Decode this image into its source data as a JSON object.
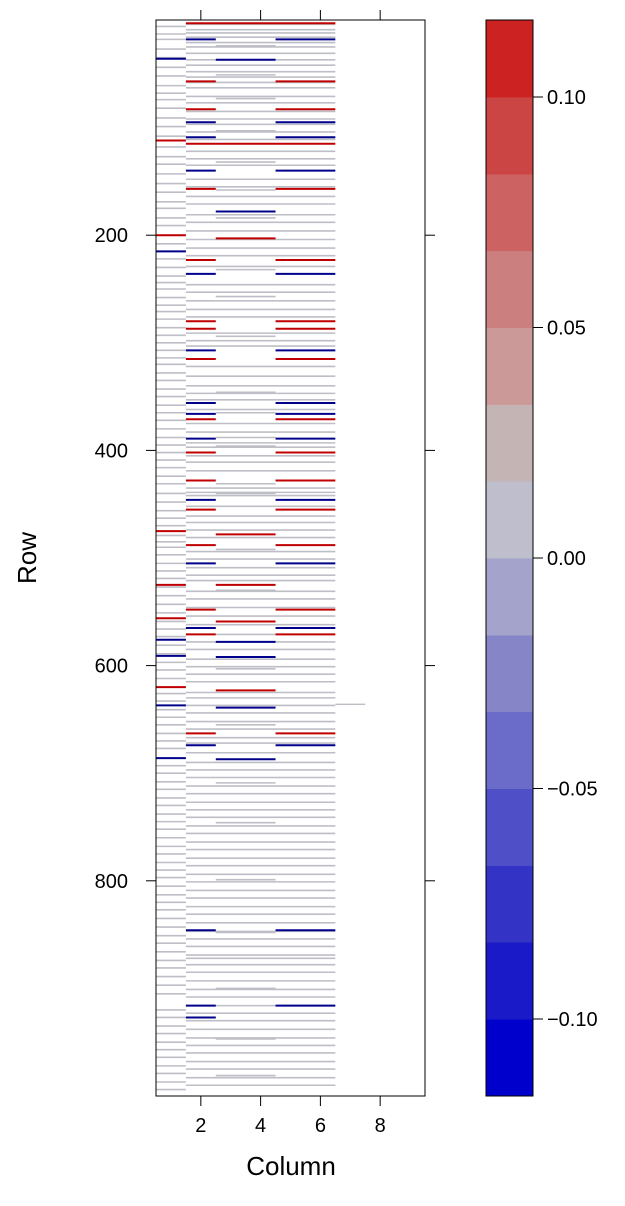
{
  "chart_data": {
    "type": "heatmap",
    "title": "",
    "xlabel": "Column",
    "ylabel": "Row",
    "xlim": [
      0.5,
      9.5
    ],
    "ylim": [
      1000,
      0
    ],
    "x_ticks": [
      2,
      4,
      6,
      8
    ],
    "x_tick_labels": [
      "2",
      "4",
      "6",
      "8"
    ],
    "y_ticks": [
      200,
      400,
      600,
      800
    ],
    "y_tick_labels": [
      "200",
      "400",
      "600",
      "800"
    ],
    "legend": {
      "placement": "right",
      "breaks": [
        -0.1167,
        -0.1,
        -0.0833,
        -0.0667,
        -0.05,
        -0.0333,
        -0.0167,
        0.0,
        0.0167,
        0.0333,
        0.05,
        0.0667,
        0.0833,
        0.1,
        0.1167
      ],
      "colors": [
        "#0000CC",
        "#1A1AC8",
        "#3333C6",
        "#4F4FC8",
        "#6B6BC9",
        "#8585C8",
        "#A3A3CC",
        "#BEBECC",
        "#C4B4B4",
        "#CC9999",
        "#CC7F7F",
        "#CC6262",
        "#CC4545",
        "#CC2222",
        "#CC0000"
      ],
      "tick_values": [
        -0.1,
        -0.05,
        0.0,
        0.05,
        0.1
      ],
      "tick_labels": [
        "−0.10",
        "−0.05",
        "0.00",
        "0.05",
        "0.10"
      ]
    },
    "color_key": {
      "gray": "#BEBEC6",
      "red": "#C00000",
      "blue": "#00008B"
    },
    "gray_rows_col1": [
      6,
      13,
      18,
      27,
      35,
      44,
      52,
      61,
      68,
      74,
      82,
      91,
      99,
      108,
      118,
      127,
      134,
      143,
      152,
      160,
      169,
      175,
      184,
      191,
      200,
      208,
      215,
      222,
      230,
      238,
      244,
      250,
      258,
      265,
      271,
      278,
      286,
      293,
      300,
      307,
      314,
      320,
      328,
      335,
      343,
      350,
      358,
      365,
      372,
      380,
      388,
      395,
      402,
      409,
      416,
      424,
      431,
      440,
      448,
      456,
      463,
      470,
      479,
      485,
      490,
      497,
      505,
      512,
      519,
      527,
      535,
      543,
      551,
      559,
      566,
      573,
      581,
      589,
      597,
      604,
      612,
      626,
      633,
      641,
      648,
      655,
      663,
      670,
      677,
      693,
      700,
      708,
      715,
      723,
      730,
      738,
      745,
      752,
      760,
      768,
      775,
      783,
      790,
      797,
      805,
      813,
      820,
      827,
      835,
      843,
      851,
      858,
      866,
      874,
      881,
      889,
      897,
      905,
      920,
      927,
      935,
      942,
      950,
      957,
      964,
      972,
      979,
      987,
      994
    ],
    "gray_rows_wide": [
      4,
      9,
      12,
      16,
      21,
      25,
      31,
      37,
      42,
      48,
      53,
      58,
      63,
      71,
      77,
      85,
      92,
      97,
      104,
      111,
      122,
      129,
      135,
      148,
      155,
      164,
      171,
      181,
      188,
      196,
      204,
      212,
      219,
      229,
      246,
      253,
      261,
      269,
      276,
      291,
      298,
      303,
      322,
      331,
      340,
      347,
      353,
      362,
      375,
      383,
      393,
      397,
      405,
      411,
      419,
      435,
      439,
      442,
      452,
      461,
      467,
      474,
      481,
      494,
      501,
      509,
      516,
      521,
      531,
      538,
      546,
      554,
      562,
      578,
      585,
      594,
      601,
      608,
      615,
      625,
      630,
      637,
      644,
      652,
      659,
      667,
      672,
      681,
      690,
      697,
      704,
      712,
      719,
      727,
      734,
      741,
      749,
      756,
      764,
      771,
      779,
      786,
      794,
      801,
      809,
      816,
      824,
      831,
      839,
      847,
      854,
      861,
      869,
      872,
      878,
      885,
      893,
      901,
      908,
      916,
      923,
      930,
      938,
      946,
      953,
      960,
      968,
      975,
      983,
      990
    ],
    "gray_rows_col3": [
      3,
      24,
      51,
      73,
      103,
      132,
      158,
      184,
      232,
      257,
      294,
      346,
      365,
      388,
      396,
      431,
      440,
      492,
      530,
      571,
      603,
      655,
      709,
      746,
      799,
      848,
      900,
      947,
      981
    ],
    "gray_row_col7": 636,
    "red_cells": [
      {
        "row": 3,
        "cols": [
          2,
          3,
          4,
          5,
          6
        ]
      },
      {
        "row": 57,
        "cols": [
          2,
          5,
          6
        ]
      },
      {
        "row": 83,
        "cols": [
          2,
          5,
          6
        ]
      },
      {
        "row": 112,
        "cols": [
          1
        ]
      },
      {
        "row": 115,
        "cols": [
          2,
          3,
          4,
          5,
          6
        ]
      },
      {
        "row": 157,
        "cols": [
          2,
          5,
          6
        ]
      },
      {
        "row": 200,
        "cols": [
          1
        ]
      },
      {
        "row": 203,
        "cols": [
          3,
          4
        ]
      },
      {
        "row": 223,
        "cols": [
          2,
          5,
          6
        ]
      },
      {
        "row": 280,
        "cols": [
          2,
          5,
          6
        ]
      },
      {
        "row": 287,
        "cols": [
          2,
          5,
          6
        ]
      },
      {
        "row": 315,
        "cols": [
          2,
          5,
          6
        ]
      },
      {
        "row": 371,
        "cols": [
          2,
          5,
          6
        ]
      },
      {
        "row": 402,
        "cols": [
          2,
          5,
          6
        ]
      },
      {
        "row": 428,
        "cols": [
          2,
          5,
          6
        ]
      },
      {
        "row": 455,
        "cols": [
          2,
          5,
          6
        ]
      },
      {
        "row": 475,
        "cols": [
          1
        ]
      },
      {
        "row": 478,
        "cols": [
          3,
          4
        ]
      },
      {
        "row": 488,
        "cols": [
          2,
          5,
          6
        ]
      },
      {
        "row": 525,
        "cols": [
          1
        ]
      },
      {
        "row": 525,
        "cols": [
          3,
          4
        ]
      },
      {
        "row": 548,
        "cols": [
          2,
          5,
          6
        ]
      },
      {
        "row": 556,
        "cols": [
          1
        ]
      },
      {
        "row": 559,
        "cols": [
          3,
          4
        ]
      },
      {
        "row": 571,
        "cols": [
          2,
          5,
          6
        ]
      },
      {
        "row": 620,
        "cols": [
          1
        ]
      },
      {
        "row": 623,
        "cols": [
          3,
          4
        ]
      },
      {
        "row": 663,
        "cols": [
          2,
          5,
          6
        ]
      }
    ],
    "blue_cells": [
      {
        "row": 18,
        "cols": [
          2,
          5,
          6
        ]
      },
      {
        "row": 36,
        "cols": [
          1
        ]
      },
      {
        "row": 37,
        "cols": [
          3,
          4
        ]
      },
      {
        "row": 95,
        "cols": [
          2,
          5,
          6
        ]
      },
      {
        "row": 109,
        "cols": [
          2,
          5,
          6
        ]
      },
      {
        "row": 140,
        "cols": [
          2,
          5,
          6
        ]
      },
      {
        "row": 178,
        "cols": [
          3,
          4
        ]
      },
      {
        "row": 215,
        "cols": [
          1
        ]
      },
      {
        "row": 236,
        "cols": [
          2,
          5,
          6
        ]
      },
      {
        "row": 307,
        "cols": [
          2,
          5,
          6
        ]
      },
      {
        "row": 356,
        "cols": [
          2,
          5,
          6
        ]
      },
      {
        "row": 366,
        "cols": [
          2,
          5,
          6
        ]
      },
      {
        "row": 389,
        "cols": [
          2,
          5,
          6
        ]
      },
      {
        "row": 446,
        "cols": [
          2,
          5,
          6
        ]
      },
      {
        "row": 505,
        "cols": [
          2,
          5,
          6
        ]
      },
      {
        "row": 565,
        "cols": [
          2,
          5,
          6
        ]
      },
      {
        "row": 576,
        "cols": [
          1
        ]
      },
      {
        "row": 578,
        "cols": [
          3,
          4
        ]
      },
      {
        "row": 591,
        "cols": [
          1
        ]
      },
      {
        "row": 592,
        "cols": [
          3,
          4
        ]
      },
      {
        "row": 637,
        "cols": [
          1
        ]
      },
      {
        "row": 639,
        "cols": [
          3,
          4
        ]
      },
      {
        "row": 674,
        "cols": [
          2,
          5,
          6
        ]
      },
      {
        "row": 686,
        "cols": [
          1
        ]
      },
      {
        "row": 687,
        "cols": [
          3,
          4
        ]
      },
      {
        "row": 846,
        "cols": [
          2,
          5,
          6
        ]
      },
      {
        "row": 916,
        "cols": [
          2,
          5,
          6
        ]
      },
      {
        "row": 927,
        "cols": [
          2
        ]
      }
    ]
  }
}
